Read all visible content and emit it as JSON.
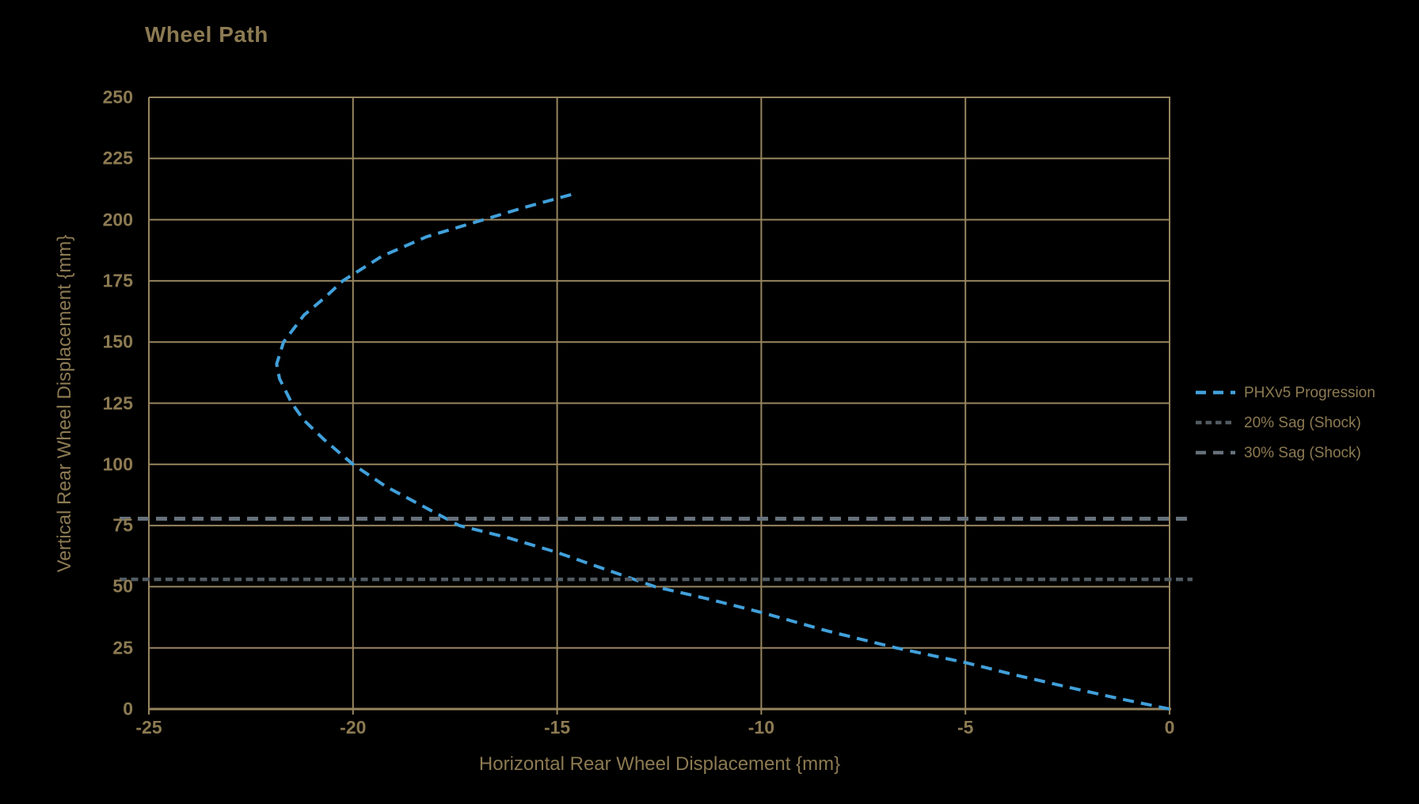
{
  "chart_data": {
    "type": "line",
    "title": "Wheel Path",
    "xlabel": "Horizontal Rear Wheel Displacement {mm}",
    "ylabel": "Vertical Rear Wheel Displacement {mm}",
    "xlim": [
      -25,
      0
    ],
    "ylim": [
      0,
      250
    ],
    "x_ticks": [
      -25,
      -20,
      -15,
      -10,
      -5,
      0
    ],
    "y_ticks": [
      0,
      25,
      50,
      75,
      100,
      125,
      150,
      175,
      200,
      225,
      250
    ],
    "grid": true,
    "legend_position": "right-outside",
    "background_color": "#000000",
    "grid_color": "#97855f",
    "text_color": "#8c7a52",
    "series": [
      {
        "name": "PHXv5 Progression",
        "kind": "curve",
        "color": "#41a0da",
        "dash": [
          14,
          9
        ],
        "line_width": 4,
        "points": [
          [
            0,
            0
          ],
          [
            -1.3,
            4.5
          ],
          [
            -2.5,
            9
          ],
          [
            -3.8,
            14
          ],
          [
            -5,
            19
          ],
          [
            -6.7,
            25
          ],
          [
            -8.4,
            32
          ],
          [
            -10,
            39.5
          ],
          [
            -11.3,
            45
          ],
          [
            -12.6,
            50
          ],
          [
            -13.8,
            57
          ],
          [
            -15,
            64
          ],
          [
            -16.2,
            70
          ],
          [
            -17.4,
            75
          ],
          [
            -18.3,
            83
          ],
          [
            -19.2,
            91
          ],
          [
            -20,
            100
          ],
          [
            -20.7,
            110
          ],
          [
            -21.2,
            118
          ],
          [
            -21.5,
            125
          ],
          [
            -21.8,
            135
          ],
          [
            -21.87,
            141
          ],
          [
            -21.7,
            150
          ],
          [
            -21.2,
            161
          ],
          [
            -20.7,
            168
          ],
          [
            -20.25,
            175
          ],
          [
            -19.3,
            185
          ],
          [
            -18.2,
            193
          ],
          [
            -16.8,
            200
          ],
          [
            -15.8,
            205
          ],
          [
            -14.65,
            210.3
          ]
        ]
      },
      {
        "name": "20% Sag (Shock)",
        "kind": "hline",
        "color": "#525b62",
        "dash": [
          9,
          5.5
        ],
        "line_width": 4.5,
        "y": 53
      },
      {
        "name": "30% Sag (Shock)",
        "kind": "hline",
        "color": "#66717b",
        "dash": [
          14,
          9
        ],
        "line_width": 5,
        "y": 77.8
      }
    ]
  }
}
